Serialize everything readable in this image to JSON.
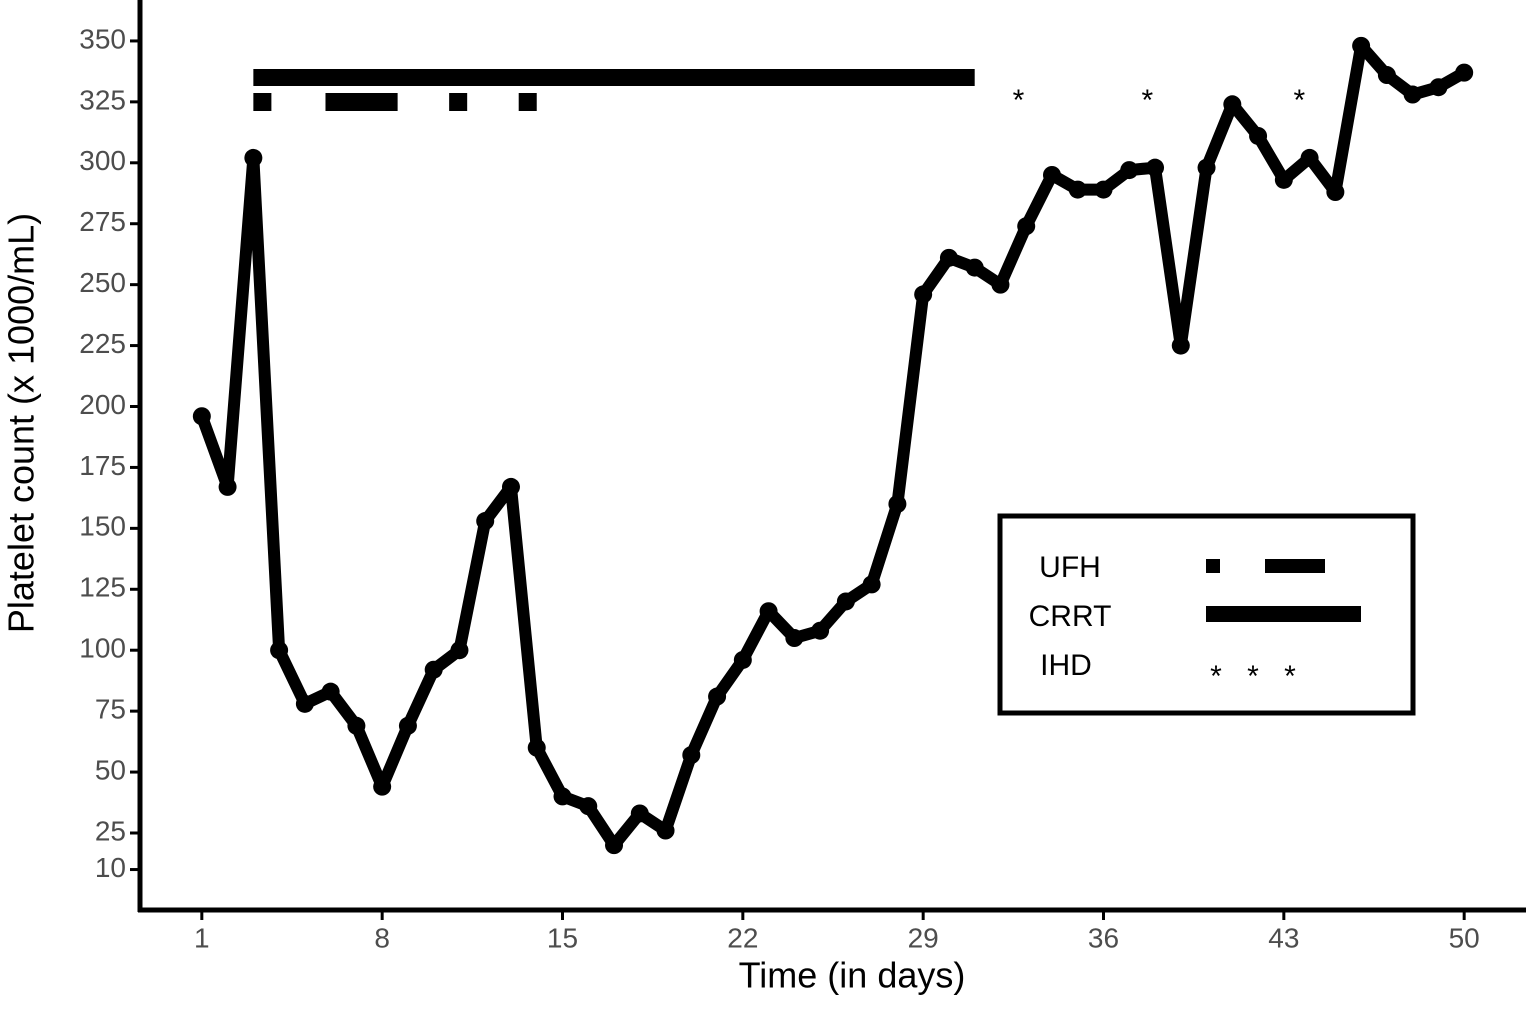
{
  "chart_data": {
    "type": "line",
    "x_label": "Time (in days)",
    "y_label": "Platelet count (x 1000/mL)",
    "x": [
      1,
      2,
      3,
      4,
      5,
      6,
      7,
      8,
      9,
      10,
      11,
      12,
      13,
      14,
      15,
      16,
      17,
      18,
      19,
      20,
      21,
      22,
      23,
      24,
      25,
      26,
      27,
      28,
      29,
      30,
      31,
      32,
      33,
      34,
      35,
      36,
      37,
      38,
      39,
      40,
      41,
      42,
      43,
      44,
      45,
      46,
      47,
      48,
      49,
      50
    ],
    "series": [
      {
        "name": "Platelet count",
        "color": "#000000",
        "values": [
          196,
          167,
          302,
          100,
          78,
          83,
          69,
          44,
          69,
          92,
          100,
          153,
          167,
          60,
          40,
          36,
          20,
          33,
          26,
          57,
          81,
          96,
          116,
          105,
          108,
          120,
          127,
          160,
          246,
          261,
          257,
          250,
          274,
          295,
          289,
          289,
          297,
          298,
          225,
          298,
          324,
          311,
          293,
          302,
          288,
          348,
          336,
          328,
          331,
          337
        ]
      }
    ],
    "xlim": [
      -1.4,
      52.4
    ],
    "ylim": [
      -6.6,
      366.8
    ],
    "xticks": [
      1,
      8,
      15,
      22,
      29,
      36,
      43,
      50
    ],
    "yticks": [
      10,
      25,
      50,
      75,
      100,
      125,
      150,
      175,
      200,
      225,
      250,
      275,
      300,
      325,
      350
    ],
    "annotations": {
      "ufh": {
        "label": "UFH",
        "intervals": [
          [
            3,
            3.7
          ],
          [
            5.8,
            8.6
          ],
          [
            10.6,
            11.3
          ],
          [
            13.3,
            14.0
          ]
        ]
      },
      "crrt": {
        "label": "CRRT",
        "intervals": [
          [
            3,
            31
          ]
        ]
      },
      "ihd": {
        "label": "IHD",
        "symbol": "*",
        "days": [
          32.7,
          37.7,
          43.6
        ]
      }
    }
  }
}
